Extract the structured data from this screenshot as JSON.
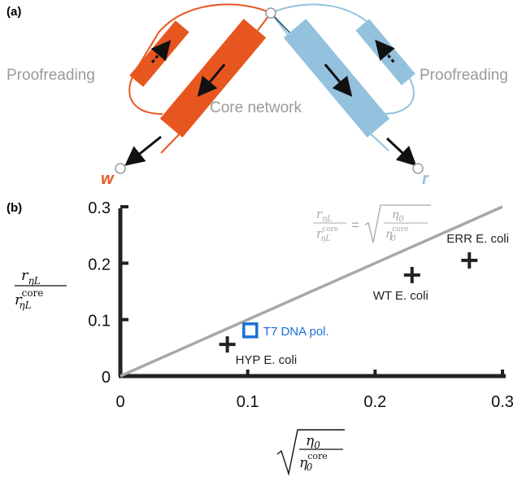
{
  "panel_a": {
    "label": "(a)",
    "proofreading_left": "Proofreading",
    "proofreading_right": "Proofreading",
    "core_network": "Core network",
    "w_label": "w",
    "r_label": "r",
    "colors": {
      "w": "#e8561f",
      "r": "#93c1de",
      "node": "#ffffff"
    }
  },
  "panel_b": {
    "label": "(b)",
    "y_axis_label": {
      "num": "r",
      "num_sub": "ηL",
      "den": "r",
      "den_sup": "core",
      "den_sub": "ηL"
    },
    "x_axis_label": {
      "num": "η",
      "num_sub": "0",
      "den": "η",
      "den_sup": "core",
      "den_sub": "0"
    },
    "line_label": {
      "lhs_num": "r",
      "lhs_num_sub": "ηL",
      "lhs_den": "r",
      "lhs_den_sup": "core",
      "lhs_den_sub": "ηL",
      "eq": "=",
      "rhs_num": "η",
      "rhs_num_sub": "0",
      "rhs_den": "η",
      "rhs_den_sup": "core",
      "rhs_den_sub": "0"
    }
  },
  "chart_data": {
    "type": "scatter",
    "xlim": [
      0,
      0.3
    ],
    "ylim": [
      0,
      0.3
    ],
    "xticks": [
      "0",
      "0.1",
      "0.2",
      "0.3"
    ],
    "yticks": [
      "0",
      "0.1",
      "0.2",
      "0.3"
    ],
    "xtick_values": [
      0,
      0.1,
      0.2,
      0.3
    ],
    "ytick_values": [
      0,
      0.1,
      0.2,
      0.3
    ],
    "reference_line": {
      "x": [
        0,
        0.3
      ],
      "y": [
        0,
        0.3
      ],
      "color": "#a8a8a8"
    },
    "points": [
      {
        "label": "HYP E. coli",
        "x": 0.084,
        "y": 0.056,
        "marker": "plus",
        "color": "#222222"
      },
      {
        "label": "T7 DNA pol.",
        "x": 0.102,
        "y": 0.081,
        "marker": "square",
        "color": "#1a6fd6"
      },
      {
        "label": "WT E. coli",
        "x": 0.229,
        "y": 0.179,
        "marker": "plus",
        "color": "#222222"
      },
      {
        "label": "ERR E. coli",
        "x": 0.274,
        "y": 0.205,
        "marker": "plus",
        "color": "#222222"
      }
    ]
  }
}
